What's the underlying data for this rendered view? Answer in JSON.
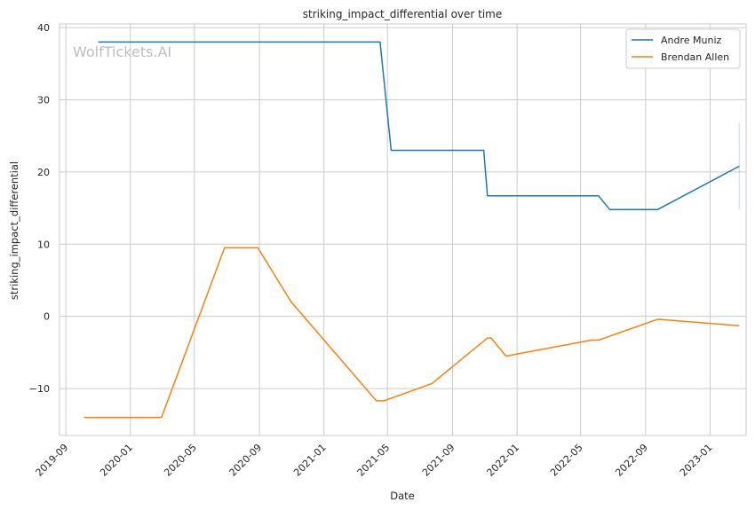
{
  "chart_data": {
    "type": "line",
    "title": "striking_impact_differential over time",
    "xlabel": "Date",
    "ylabel": "striking_impact_differential",
    "watermark": "WolfTickets.AI",
    "x_type": "date",
    "xlim": [
      "2019-08-20",
      "2023-03-10"
    ],
    "ylim": [
      -16.5,
      40.5
    ],
    "x_ticks": [
      "2019-09",
      "2020-01",
      "2020-05",
      "2020-09",
      "2021-01",
      "2021-05",
      "2021-09",
      "2022-01",
      "2022-05",
      "2022-09",
      "2023-01"
    ],
    "y_ticks": [
      -10,
      0,
      10,
      20,
      30,
      40
    ],
    "y_tick_labels": [
      "−10",
      "0",
      "10",
      "20",
      "30",
      "40"
    ],
    "grid": true,
    "legend_position": "top-right",
    "series": [
      {
        "name": "Andre Muniz",
        "color": "#1f77b4",
        "points": [
          {
            "x": "2019-11-01",
            "y": 38
          },
          {
            "x": "2021-04-17",
            "y": 38
          },
          {
            "x": "2021-05-08",
            "y": 23
          },
          {
            "x": "2021-10-30",
            "y": 23
          },
          {
            "x": "2021-11-06",
            "y": 16.7
          },
          {
            "x": "2022-06-04",
            "y": 16.7
          },
          {
            "x": "2022-06-25",
            "y": 14.8
          },
          {
            "x": "2022-09-24",
            "y": 14.8
          },
          {
            "x": "2023-02-25",
            "y": 20.8
          }
        ],
        "error_bar": {
          "x": "2023-02-25",
          "low": 14.8,
          "high": 26.8
        }
      },
      {
        "name": "Brendan Allen",
        "color": "#ff7f0e",
        "points": [
          {
            "x": "2019-10-05",
            "y": -14
          },
          {
            "x": "2020-02-29",
            "y": -14
          },
          {
            "x": "2020-06-27",
            "y": 9.5
          },
          {
            "x": "2020-08-29",
            "y": 9.5
          },
          {
            "x": "2020-10-31",
            "y": 2
          },
          {
            "x": "2021-04-10",
            "y": -11.7
          },
          {
            "x": "2021-04-24",
            "y": -11.7
          },
          {
            "x": "2021-07-24",
            "y": -9.3
          },
          {
            "x": "2021-11-06",
            "y": -3
          },
          {
            "x": "2021-11-13",
            "y": -3
          },
          {
            "x": "2021-12-11",
            "y": -5.5
          },
          {
            "x": "2022-05-21",
            "y": -3.3
          },
          {
            "x": "2022-06-04",
            "y": -3.3
          },
          {
            "x": "2022-09-24",
            "y": -0.4
          },
          {
            "x": "2023-02-25",
            "y": -1.3
          }
        ]
      }
    ]
  }
}
